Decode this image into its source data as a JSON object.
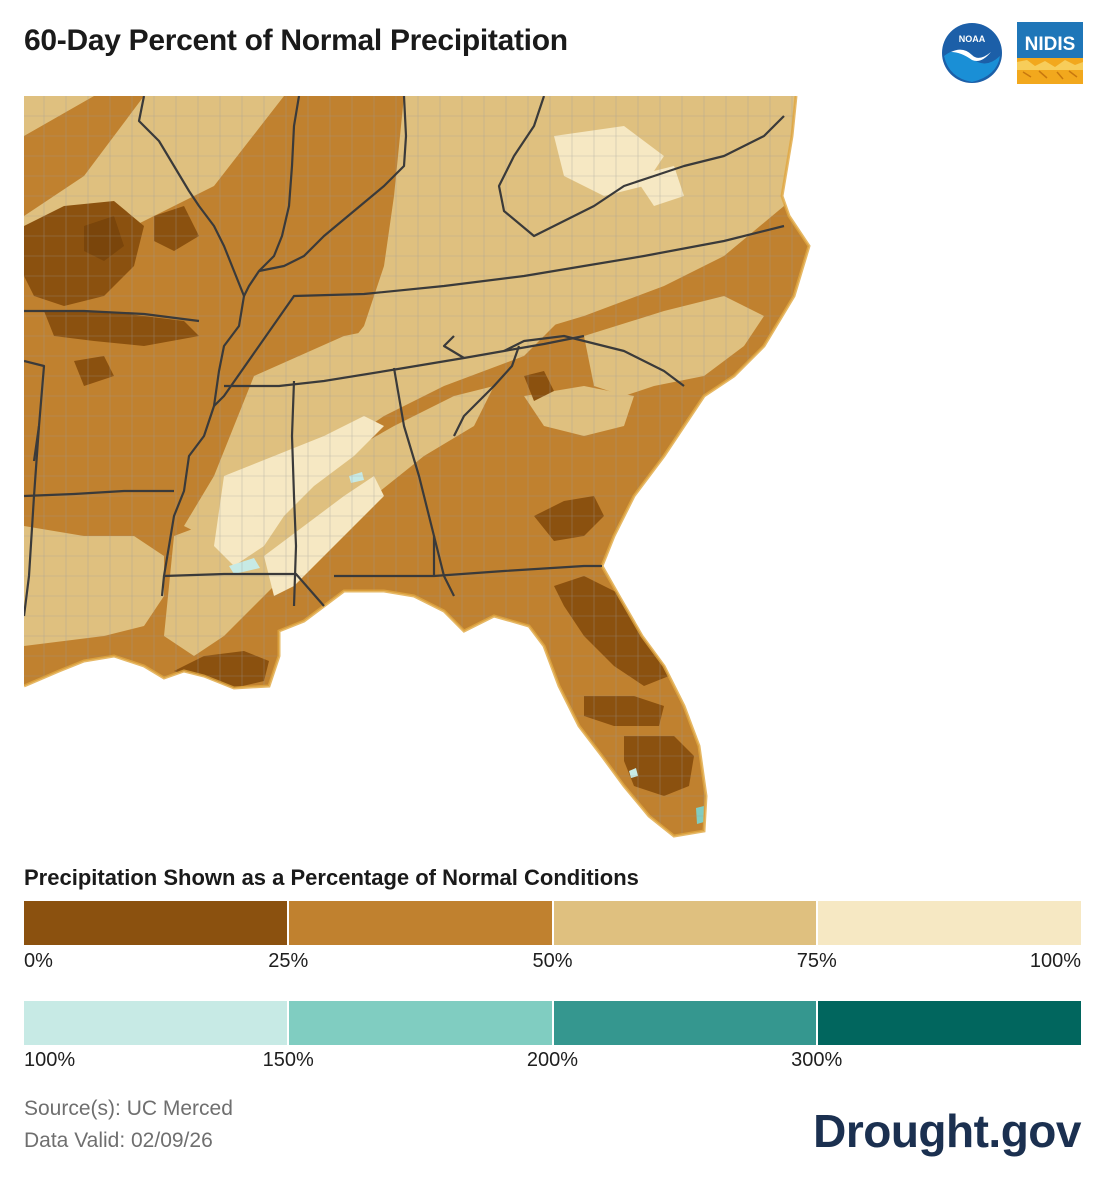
{
  "header": {
    "title": "60-Day Percent of Normal Precipitation"
  },
  "logos": {
    "noaa_text": "NOAA",
    "nidis_text": "NIDIS"
  },
  "legend": {
    "title": "Precipitation Shown as a Percentage of Normal Conditions",
    "dry_colors": [
      "#8b510f",
      "#c0812f",
      "#dfc07f",
      "#f6e8c3"
    ],
    "dry_ticks": [
      "0%",
      "25%",
      "50%",
      "75%",
      "100%"
    ],
    "wet_colors": [
      "#c7eae5",
      "#80cdc1",
      "#35978f",
      "#01665e"
    ],
    "wet_ticks": [
      "100%",
      "150%",
      "200%",
      "300%"
    ]
  },
  "footer": {
    "source": "Source(s): UC Merced",
    "valid": "Data Valid: 02/09/26",
    "brand": "Drought.gov"
  },
  "colors": {
    "water": "#ffffff",
    "state_border": "#3a3a3a",
    "county_border": "#9c9c9c"
  }
}
